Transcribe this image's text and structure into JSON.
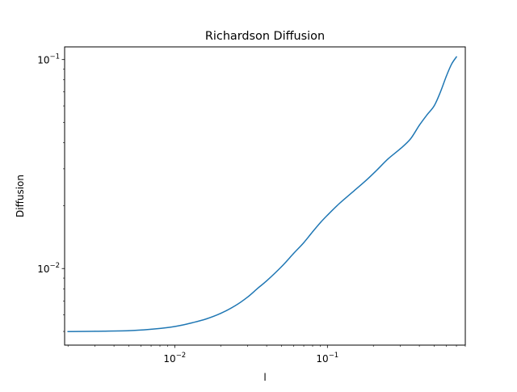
{
  "chart_data": {
    "type": "line",
    "title": "Richardson Diffusion",
    "xlabel": "l",
    "ylabel": "Diffusion",
    "xscale": "log",
    "yscale": "log",
    "xlim": [
      0.0019,
      0.8
    ],
    "ylim": [
      0.0043,
      0.115
    ],
    "grid": false,
    "legend": "none",
    "x_ticks": [
      {
        "value": 0.01,
        "base": "10",
        "exp": "−2"
      },
      {
        "value": 0.1,
        "base": "10",
        "exp": "−1"
      }
    ],
    "y_ticks": [
      {
        "value": 0.01,
        "base": "10",
        "exp": "−2"
      },
      {
        "value": 0.1,
        "base": "10",
        "exp": "−1"
      }
    ],
    "series": [
      {
        "color": "#1f77b4",
        "x": [
          0.002,
          0.003,
          0.005,
          0.007,
          0.009,
          0.011,
          0.013,
          0.016,
          0.02,
          0.025,
          0.03,
          0.035,
          0.04,
          0.05,
          0.06,
          0.07,
          0.08,
          0.09,
          0.1,
          0.12,
          0.15,
          0.18,
          0.21,
          0.25,
          0.3,
          0.35,
          0.4,
          0.45,
          0.5,
          0.55,
          0.6,
          0.65,
          0.7
        ],
        "y": [
          0.00499,
          0.00501,
          0.00504,
          0.00512,
          0.00522,
          0.00535,
          0.0055,
          0.00573,
          0.0061,
          0.00665,
          0.0073,
          0.00805,
          0.00873,
          0.0102,
          0.0118,
          0.0133,
          0.015,
          0.0166,
          0.018,
          0.0205,
          0.0236,
          0.0265,
          0.0295,
          0.0335,
          0.0374,
          0.0417,
          0.0485,
          0.0545,
          0.06,
          0.07,
          0.083,
          0.095,
          0.103
        ]
      }
    ]
  }
}
